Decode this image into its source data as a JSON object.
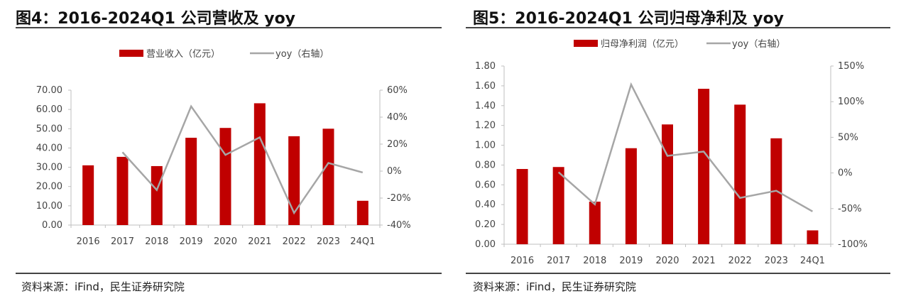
{
  "charts": [
    {
      "fig_title": "图4：2016-2024Q1 公司营收及 yoy",
      "source": "资料来源：iFind，民生证券研究院"
    },
    {
      "fig_title": "图5：2016-2024Q1 公司归母净利及 yoy",
      "source": "资料来源：iFind，民生证券研究院"
    }
  ],
  "colors": {
    "bar": "#c00000",
    "line": "#a6a6a6",
    "axis": "#bfbfbf"
  },
  "chart_data": [
    {
      "type": "bar",
      "categories": [
        "2016",
        "2017",
        "2018",
        "2019",
        "2020",
        "2021",
        "2022",
        "2023",
        "24Q1"
      ],
      "series": [
        {
          "name": "营业收入（亿元）",
          "type": "bar",
          "axis": "left",
          "values": [
            31.0,
            35.4,
            30.6,
            45.3,
            50.4,
            63.2,
            46.1,
            50.0,
            12.6
          ]
        },
        {
          "name": "yoy（右轴）",
          "type": "line",
          "axis": "right",
          "values": [
            null,
            14,
            -14,
            48,
            12,
            25,
            -31,
            6,
            -1
          ]
        }
      ],
      "ylim": [
        0,
        70
      ],
      "yticks": [
        "0.00",
        "10.00",
        "20.00",
        "30.00",
        "40.00",
        "50.00",
        "60.00",
        "70.00"
      ],
      "y2lim": [
        -40,
        60
      ],
      "y2ticks": [
        "-40%",
        "-20%",
        "0%",
        "20%",
        "40%",
        "60%"
      ],
      "legend": "top-center",
      "grid": false
    },
    {
      "type": "bar",
      "categories": [
        "2016",
        "2017",
        "2018",
        "2019",
        "2020",
        "2021",
        "2022",
        "2023",
        "24Q1"
      ],
      "series": [
        {
          "name": "归母净利润（亿元）",
          "type": "bar",
          "axis": "left",
          "values": [
            0.76,
            0.78,
            0.43,
            0.97,
            1.21,
            1.57,
            1.41,
            1.07,
            0.14
          ]
        },
        {
          "name": "yoy（右轴）",
          "type": "line",
          "axis": "right",
          "values": [
            null,
            1,
            -44,
            124,
            24,
            30,
            -35,
            -25,
            -54
          ]
        }
      ],
      "ylim": [
        0,
        1.8
      ],
      "yticks": [
        "0.00",
        "0.20",
        "0.40",
        "0.60",
        "0.80",
        "1.00",
        "1.20",
        "1.40",
        "1.60",
        "1.80"
      ],
      "y2lim": [
        -100,
        150
      ],
      "y2ticks": [
        "-100%",
        "-50%",
        "0%",
        "50%",
        "100%",
        "150%"
      ],
      "legend": "top-center",
      "grid": false
    }
  ]
}
